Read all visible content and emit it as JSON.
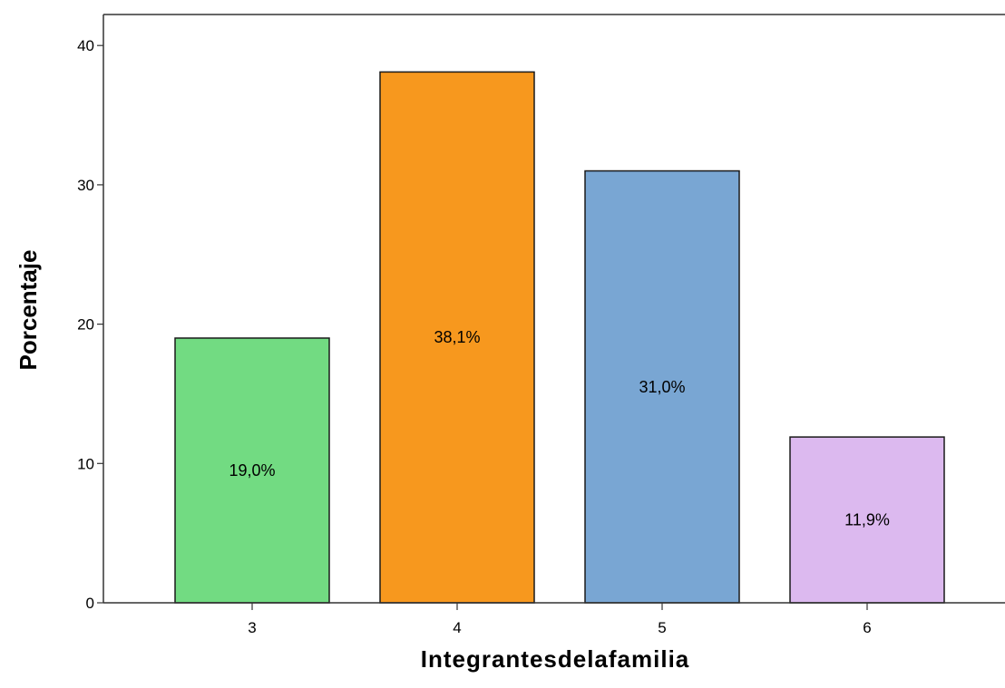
{
  "chart_data": {
    "type": "bar",
    "categories": [
      "3",
      "4",
      "5",
      "6"
    ],
    "values": [
      19.0,
      38.1,
      31.0,
      11.9
    ],
    "data_labels": [
      "19,0%",
      "38,1%",
      "31,0%",
      "11,9%"
    ],
    "colors": [
      "#72db82",
      "#f7981e",
      "#79a6d3",
      "#dcb9ef"
    ],
    "title": "",
    "xlabel": "Integrantesdelafamilia",
    "ylabel": "Porcentaje",
    "ylim": [
      0,
      40
    ],
    "yticks": [
      0,
      10,
      20,
      30,
      40
    ],
    "ytick_labels": [
      "0",
      "10",
      "20",
      "30",
      "40"
    ],
    "grid": false,
    "legend": "none"
  }
}
